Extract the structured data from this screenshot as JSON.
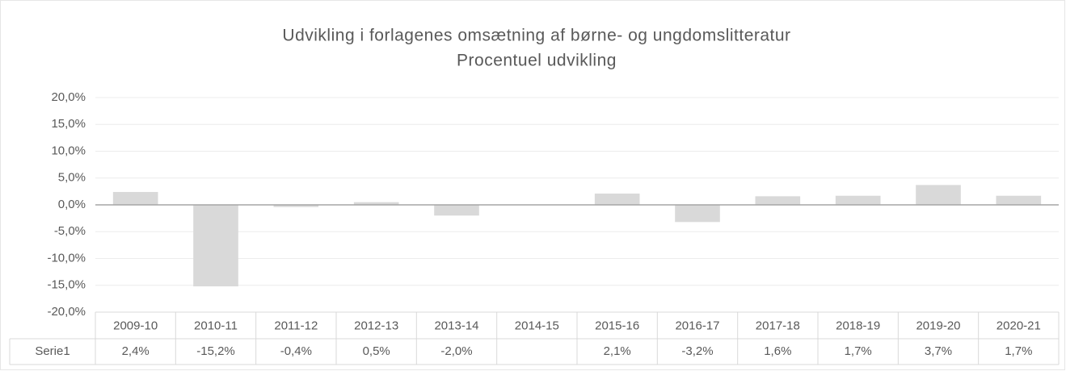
{
  "chart_data": {
    "type": "bar",
    "title": "Udvikling i forlagenes omsætning af børne- og ungdomslitteratur",
    "subtitle": "Procentuel udvikling",
    "categories": [
      "2009-10",
      "2010-11",
      "2011-12",
      "2012-13",
      "2013-14",
      "2014-15",
      "2015-16",
      "2016-17",
      "2017-18",
      "2018-19",
      "2019-20",
      "2020-21"
    ],
    "series": [
      {
        "name": "Serie1",
        "color": "#d9d9d9",
        "values": [
          2.4,
          -15.2,
          -0.4,
          0.5,
          -2.0,
          null,
          2.1,
          -3.2,
          1.6,
          1.7,
          3.7,
          1.7
        ],
        "value_labels": [
          "2,4%",
          "-15,2%",
          "-0,4%",
          "0,5%",
          "-2,0%",
          null,
          "2,1%",
          "-3,2%",
          "1,6%",
          "1,7%",
          "3,7%",
          "1,7%"
        ]
      }
    ],
    "ylim": [
      -20,
      20
    ],
    "yticks": [
      {
        "value": -20,
        "label": "-20,0%"
      },
      {
        "value": -15,
        "label": "-15,0%"
      },
      {
        "value": -10,
        "label": "-10,0%"
      },
      {
        "value": -5,
        "label": "-5,0%"
      },
      {
        "value": 0,
        "label": "0,0%"
      },
      {
        "value": 5,
        "label": "5,0%"
      },
      {
        "value": 10,
        "label": "10,0%"
      },
      {
        "value": 15,
        "label": "15,0%"
      },
      {
        "value": 20,
        "label": "20,0%"
      }
    ],
    "grid": true
  }
}
